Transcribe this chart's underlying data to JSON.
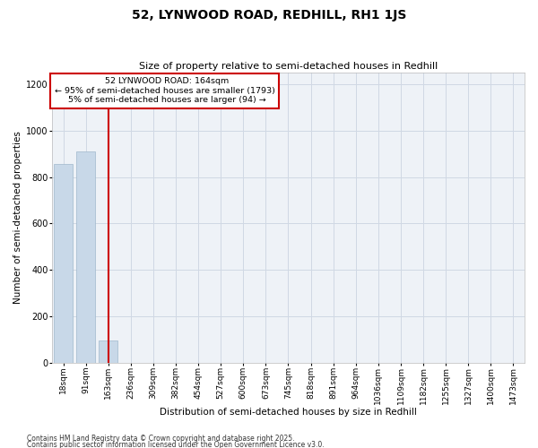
{
  "title": "52, LYNWOOD ROAD, REDHILL, RH1 1JS",
  "subtitle": "Size of property relative to semi-detached houses in Redhill",
  "xlabel": "Distribution of semi-detached houses by size in Redhill",
  "ylabel": "Number of semi-detached properties",
  "footer_line1": "Contains HM Land Registry data © Crown copyright and database right 2025.",
  "footer_line2": "Contains public sector information licensed under the Open Government Licence v3.0.",
  "bin_labels": [
    "18sqm",
    "91sqm",
    "163sqm",
    "236sqm",
    "309sqm",
    "382sqm",
    "454sqm",
    "527sqm",
    "600sqm",
    "673sqm",
    "745sqm",
    "818sqm",
    "891sqm",
    "964sqm",
    "1036sqm",
    "1109sqm",
    "1182sqm",
    "1255sqm",
    "1327sqm",
    "1400sqm",
    "1473sqm"
  ],
  "bar_values": [
    855,
    910,
    95,
    0,
    0,
    0,
    0,
    0,
    0,
    0,
    0,
    0,
    0,
    0,
    0,
    0,
    0,
    0,
    0,
    0,
    0
  ],
  "bar_color": "#c8d8e8",
  "bar_edgecolor": "#a0b8cc",
  "property_label": "52 LYNWOOD ROAD: 164sqm",
  "percent_smaller": 95,
  "count_smaller": 1793,
  "percent_larger": 5,
  "count_larger": 94,
  "vline_color": "#cc0000",
  "annotation_box_color": "#cc0000",
  "ylim": [
    0,
    1250
  ],
  "yticks": [
    0,
    200,
    400,
    600,
    800,
    1000,
    1200
  ],
  "grid_color": "#d0d8e4",
  "bg_color": "#eef2f7",
  "title_fontsize": 10,
  "subtitle_fontsize": 8,
  "tick_fontsize": 6.5,
  "ylabel_fontsize": 7.5,
  "xlabel_fontsize": 7.5,
  "footer_fontsize": 5.5
}
